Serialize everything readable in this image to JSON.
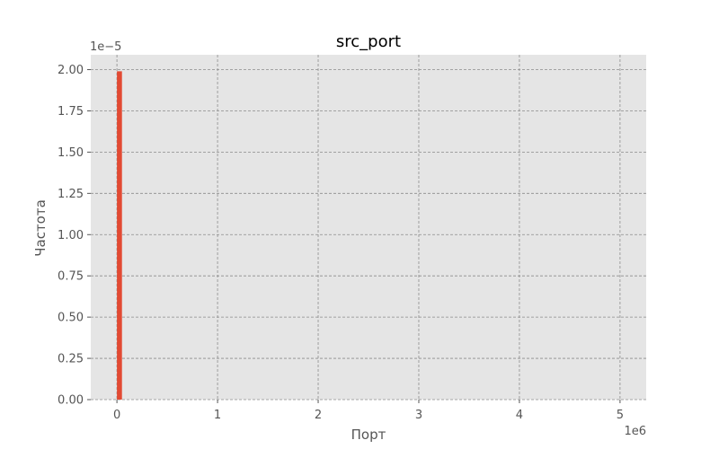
{
  "chart_data": {
    "type": "bar",
    "title": "src_port",
    "xlabel": "Порт",
    "ylabel": "Частота",
    "x_multiplier_label": "1e6",
    "y_multiplier_label": "1e−5",
    "xlim": [
      -260000,
      5260000
    ],
    "ylim": [
      0,
      2.09
    ],
    "x_ticks": [
      0,
      1,
      2,
      3,
      4,
      5
    ],
    "x_tick_labels": [
      "0",
      "1",
      "2",
      "3",
      "4",
      "5"
    ],
    "y_ticks": [
      0,
      0.25,
      0.5,
      0.75,
      1.0,
      1.25,
      1.5,
      1.75,
      2.0
    ],
    "y_tick_labels": [
      "0.00",
      "0.25",
      "0.50",
      "0.75",
      "1.00",
      "1.25",
      "1.50",
      "1.75",
      "2.00"
    ],
    "bars": [
      {
        "x0": 0,
        "x1": 50000,
        "value": 1.99
      }
    ],
    "grid": true,
    "colors": {
      "plot_bg": "#e5e5e5",
      "grid": "#8c8c8c",
      "bar": "#e24a33",
      "text": "#555555",
      "title": "#000000"
    }
  }
}
